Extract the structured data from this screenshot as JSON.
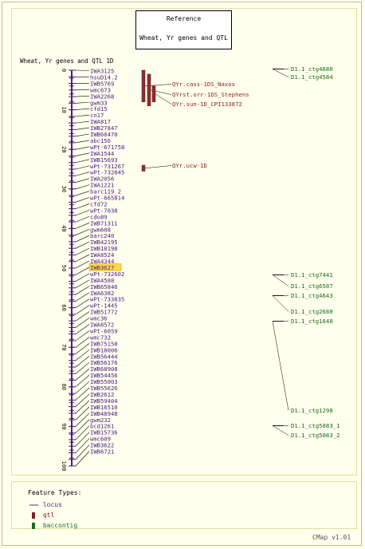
{
  "reference": {
    "heading": "Reference",
    "subtitle": "Wheat, Yr genes and QTL"
  },
  "map": {
    "title": "Wheat, Yr genes and QTL 1D",
    "scale_ticks": [
      "0",
      "10",
      "20",
      "30",
      "40",
      "50",
      "60",
      "70",
      "80",
      "90",
      "100"
    ],
    "loci": [
      "IWA3125",
      "hsuD14.2",
      "IWB5769",
      "wmc673",
      "IWA2268",
      "gwm33",
      "cfd15",
      "cn17",
      "IWA817",
      "IWB27847",
      "IWB60470",
      "abc156",
      "wPt-671758",
      "IWA1544",
      "IWB15693",
      "wPt-731267",
      "wPt-732845",
      "IWA2056",
      "IWA1221",
      "barc119_2",
      "wPt-665814",
      "cfd72",
      "wPt-7038",
      "cdo89",
      "IWB71311",
      "gwm608",
      "barc240",
      "IWB42195",
      "IWB18198",
      "IWA8524",
      "IWA4344",
      "IWB3627",
      "wPt-732602",
      "IWA4588",
      "IWB65846",
      "IWA6382",
      "wPt-733835",
      "wPt-1445",
      "IWB51772",
      "wmc36",
      "IWA8572",
      "wPt-6059",
      "wmc732",
      "IWB75158",
      "IWB18006",
      "IWB56444",
      "IWB56176",
      "IWB68908",
      "IWB54456",
      "IWB55003",
      "IWB55626",
      "IWB2612",
      "IWB59404",
      "IWB16510",
      "IWB48948",
      "gwm232",
      "bcd1261",
      "IWB15736",
      "wmc609",
      "IWB3622",
      "IWB6721"
    ],
    "highlighted_locus": "IWB3627",
    "qtl": [
      {
        "label": "QYr.cass-1DS_Naxos",
        "start": 0,
        "end": 8
      },
      {
        "label": "QYrst.orr-1DS_Stephens",
        "start": 1,
        "end": 9
      },
      {
        "label": "QYr.sun-1D_CPI133872",
        "start": 4,
        "end": 8
      },
      {
        "label": "QYr.ucw-1D",
        "start": 24,
        "end": 25.5
      }
    ],
    "contigs": [
      {
        "label": "D1.1_ctg4680",
        "pos": 0.5
      },
      {
        "label": "D1.1_ctg4584",
        "pos": 2.5
      },
      {
        "label": "D1.1_ctg7441",
        "pos": 51
      },
      {
        "label": "D1.1_ctg6587",
        "pos": 53
      },
      {
        "label": "D1.1_ctg4643",
        "pos": 55
      },
      {
        "label": "D1.1_ctg2680",
        "pos": 60
      },
      {
        "label": "D1.1_ctg1648",
        "pos": 62
      },
      {
        "label": "D1.1_ctg1298",
        "pos": 86
      },
      {
        "label": "D1.1_ctg5083_1",
        "pos": 90
      },
      {
        "label": "D1.1_ctg5083_2",
        "pos": 92
      }
    ]
  },
  "legend": {
    "title": "Feature Types:",
    "items": [
      {
        "label": "locus",
        "color": "#5a2a86"
      },
      {
        "label": "qtl",
        "color": "#7a2020"
      },
      {
        "label": "baccontig",
        "color": "#1a6b1a"
      }
    ]
  },
  "credit": "CMap v1.01",
  "colors": {
    "locus": "#4a1a82",
    "qtl_fill": "#8b3030",
    "qtl_text": "#8b1c1c",
    "contig": "#176b17",
    "highlight": "#ffd84a"
  }
}
